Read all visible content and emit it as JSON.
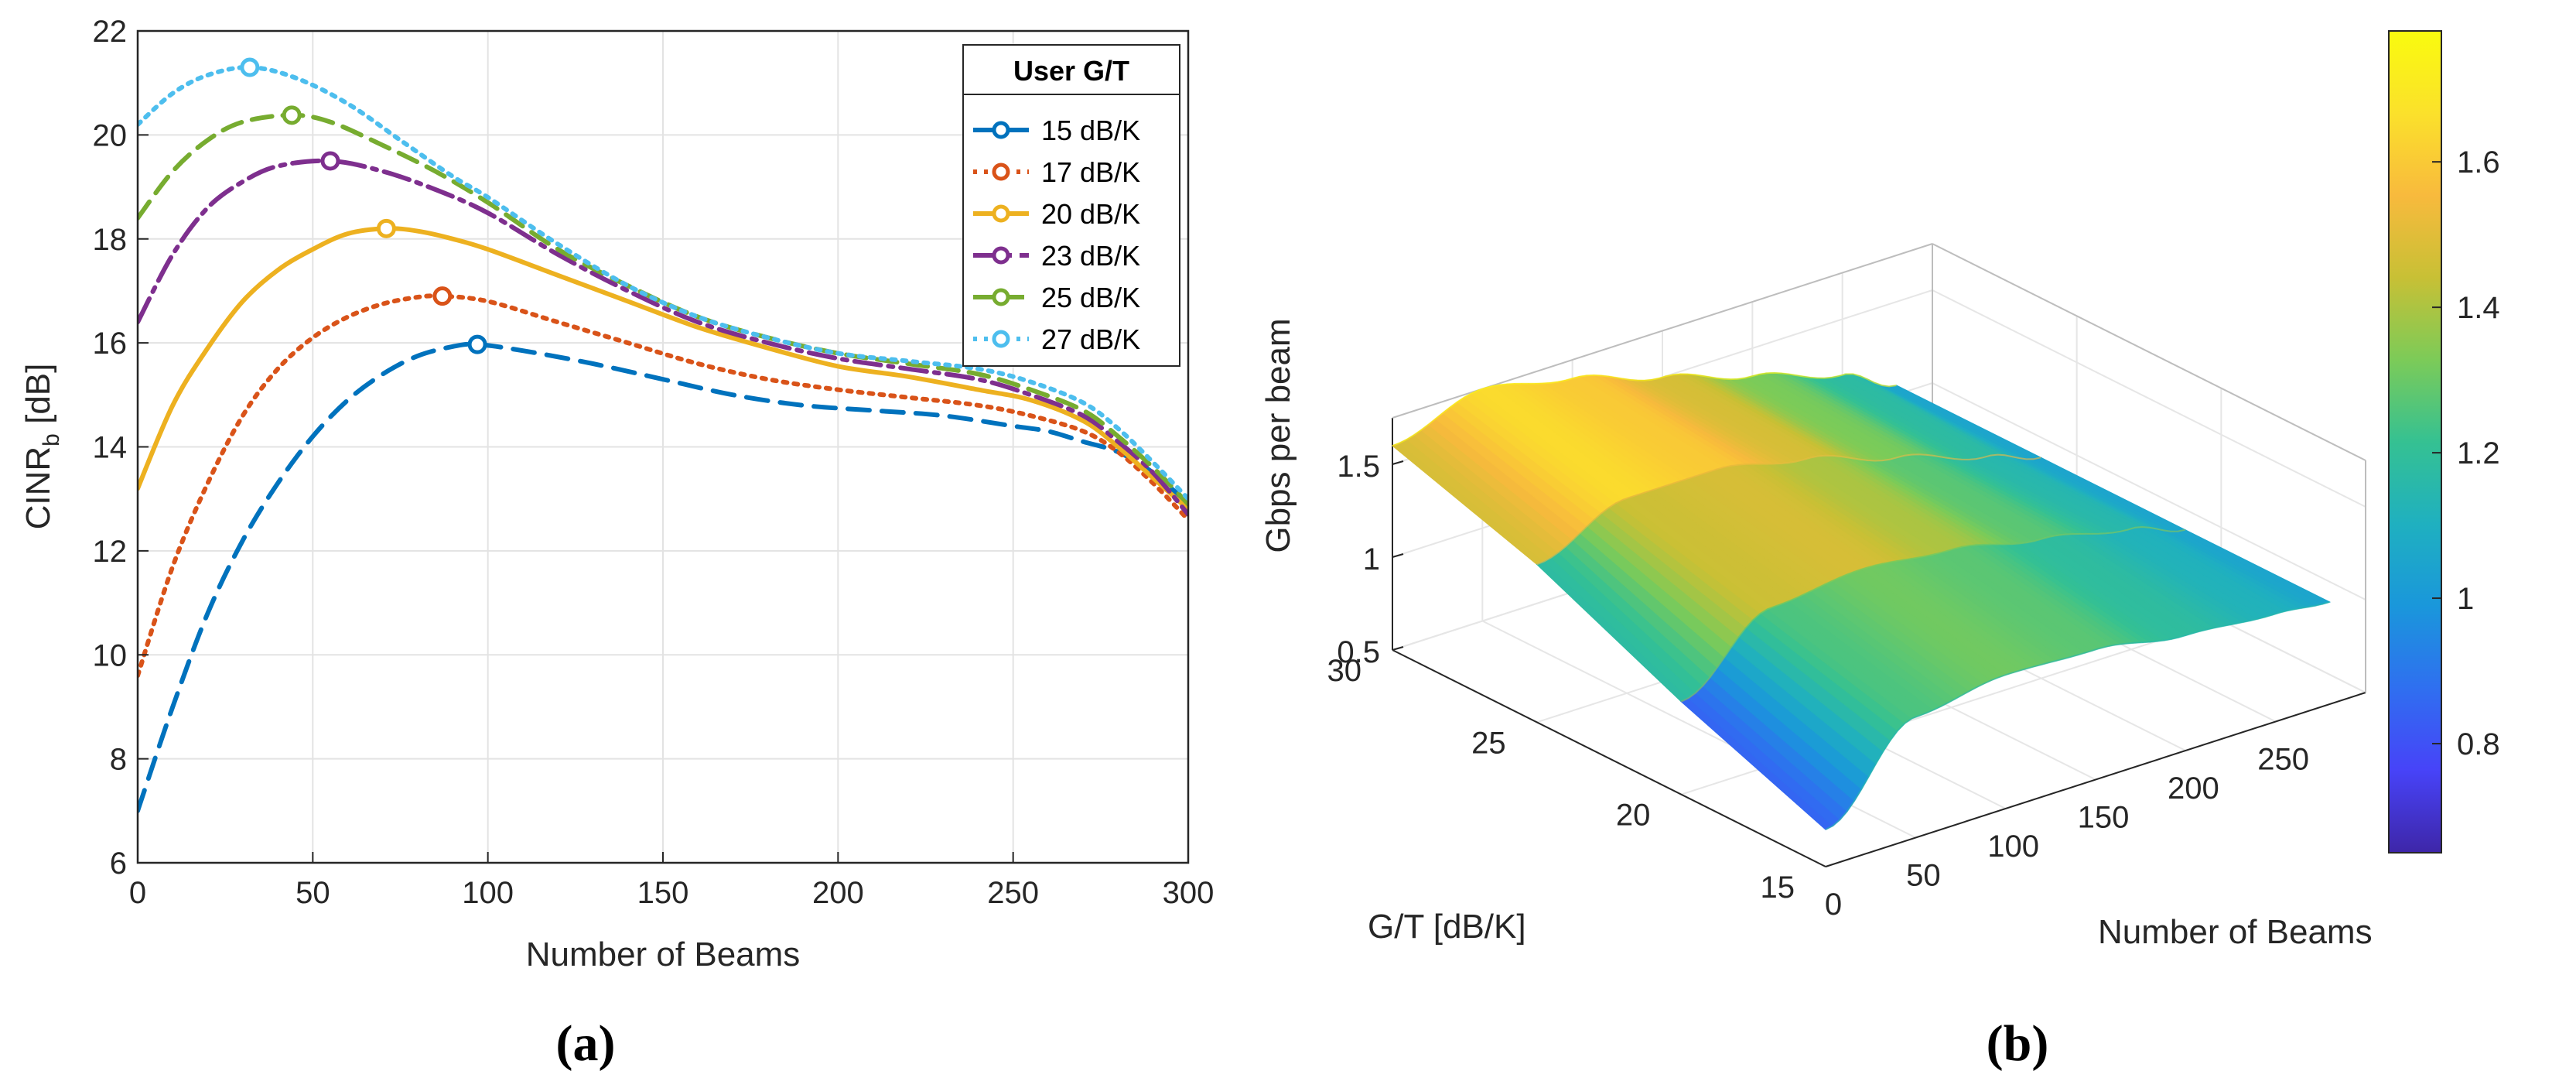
{
  "figure": {
    "panel_a_label": "(a)",
    "panel_b_label": "(b)"
  },
  "chart_data": [
    {
      "type": "line",
      "xlabel": "Number of Beams",
      "ylabel_main": "CINR",
      "ylabel_sub": "b",
      "ylabel_unit": " [dB]",
      "xlim": [
        0,
        300
      ],
      "ylim": [
        6,
        22
      ],
      "xticks": [
        0,
        50,
        100,
        150,
        200,
        250,
        300
      ],
      "yticks": [
        6,
        8,
        10,
        12,
        14,
        16,
        18,
        20,
        22
      ],
      "grid": true,
      "legend": {
        "title": "User G/T",
        "placement": "top-right"
      },
      "series": [
        {
          "name": "15 dB/K",
          "color": "#0072BD",
          "dash": "28,16",
          "peak": [
            97,
            15.97
          ],
          "x": [
            0,
            10,
            20,
            30,
            40,
            50,
            60,
            70,
            80,
            90,
            97,
            110,
            130,
            150,
            170,
            190,
            210,
            230,
            250,
            260,
            270,
            280,
            290,
            300
          ],
          "y": [
            7.0,
            9.0,
            10.8,
            12.2,
            13.3,
            14.2,
            14.9,
            15.4,
            15.75,
            15.93,
            15.97,
            15.85,
            15.6,
            15.3,
            15.0,
            14.8,
            14.7,
            14.6,
            14.4,
            14.3,
            14.1,
            13.9,
            13.5,
            12.9
          ]
        },
        {
          "name": "17 dB/K",
          "color": "#D95319",
          "dash": "5,9",
          "peak": [
            87,
            16.9
          ],
          "x": [
            0,
            10,
            20,
            30,
            40,
            50,
            60,
            70,
            80,
            87,
            100,
            120,
            140,
            160,
            180,
            200,
            220,
            240,
            255,
            270,
            280,
            290,
            300
          ],
          "y": [
            9.6,
            11.7,
            13.3,
            14.6,
            15.5,
            16.1,
            16.5,
            16.75,
            16.88,
            16.9,
            16.8,
            16.4,
            16.0,
            15.6,
            15.3,
            15.1,
            14.95,
            14.8,
            14.6,
            14.3,
            13.9,
            13.3,
            12.6
          ]
        },
        {
          "name": "20 dB/K",
          "color": "#EDB120",
          "dash": "",
          "peak": [
            71,
            18.2
          ],
          "x": [
            0,
            10,
            20,
            30,
            40,
            50,
            60,
            71,
            80,
            90,
            100,
            120,
            140,
            160,
            180,
            200,
            220,
            240,
            255,
            270,
            280,
            290,
            300
          ],
          "y": [
            13.2,
            14.8,
            15.9,
            16.8,
            17.4,
            17.8,
            18.1,
            18.2,
            18.15,
            18.0,
            17.8,
            17.3,
            16.8,
            16.3,
            15.9,
            15.55,
            15.35,
            15.1,
            14.9,
            14.5,
            14.0,
            13.4,
            12.8
          ]
        },
        {
          "name": "23 dB/K",
          "color": "#7E2F8E",
          "dash": "34,10,6,10",
          "peak": [
            55,
            19.5
          ],
          "x": [
            0,
            10,
            20,
            30,
            40,
            55,
            70,
            85,
            100,
            120,
            140,
            160,
            180,
            200,
            220,
            240,
            255,
            270,
            280,
            290,
            300
          ],
          "y": [
            16.4,
            17.7,
            18.6,
            19.1,
            19.4,
            19.5,
            19.3,
            18.95,
            18.5,
            17.7,
            17.0,
            16.4,
            16.0,
            15.7,
            15.5,
            15.3,
            15.0,
            14.6,
            14.1,
            13.5,
            12.7
          ]
        },
        {
          "name": "25 dB/K",
          "color": "#77AC30",
          "dash": "26,14",
          "peak": [
            44,
            20.38
          ],
          "x": [
            0,
            10,
            20,
            30,
            44,
            55,
            70,
            85,
            100,
            120,
            140,
            160,
            180,
            200,
            220,
            240,
            255,
            270,
            280,
            290,
            300
          ],
          "y": [
            18.4,
            19.3,
            19.9,
            20.25,
            20.38,
            20.25,
            19.8,
            19.3,
            18.7,
            17.8,
            17.1,
            16.5,
            16.1,
            15.8,
            15.6,
            15.4,
            15.1,
            14.7,
            14.2,
            13.6,
            12.9
          ]
        },
        {
          "name": "27 dB/K",
          "color": "#4DBEEE",
          "dash": "5,9",
          "peak": [
            32,
            21.3
          ],
          "x": [
            0,
            10,
            20,
            32,
            45,
            60,
            75,
            90,
            100,
            120,
            140,
            160,
            180,
            200,
            220,
            240,
            255,
            270,
            280,
            290,
            300
          ],
          "y": [
            20.2,
            20.8,
            21.15,
            21.3,
            21.1,
            20.6,
            19.9,
            19.2,
            18.8,
            17.9,
            17.1,
            16.5,
            16.1,
            15.8,
            15.65,
            15.5,
            15.25,
            14.85,
            14.35,
            13.7,
            13.0
          ]
        }
      ]
    },
    {
      "type": "surface",
      "xlabel": "Number of Beams",
      "ylabel": "G/T [dB/K]",
      "zlabel": "Gbps per beam",
      "beams_ticks": [
        0,
        50,
        100,
        150,
        200,
        250
      ],
      "gt_ticks": [
        15,
        20,
        25,
        30
      ],
      "z_ticks": [
        0.5,
        1,
        1.5
      ],
      "zlim": [
        0.5,
        1.8
      ],
      "colorbar": {
        "ticks": [
          0.8,
          1,
          1.2,
          1.4,
          1.6
        ],
        "range": [
          0.65,
          1.78
        ],
        "colormap": [
          "#3E26A8",
          "#4743F8",
          "#2F6FF0",
          "#1A97DB",
          "#1FB0C0",
          "#35C192",
          "#7CCB58",
          "#C8C035",
          "#F8BA3D",
          "#FBE12B",
          "#F9FB0E"
        ]
      },
      "surface_lines": [
        {
          "gt": 15,
          "beams": [
            0,
            50,
            100,
            150,
            200,
            250,
            280
          ],
          "gbps": [
            0.7,
            1.15,
            1.22,
            1.2,
            1.12,
            1.08,
            1.05
          ]
        },
        {
          "gt": 20,
          "beams": [
            0,
            50,
            100,
            150,
            200,
            250,
            280
          ],
          "gbps": [
            1.0,
            1.35,
            1.4,
            1.35,
            1.25,
            1.15,
            1.05
          ]
        },
        {
          "gt": 25,
          "beams": [
            0,
            50,
            100,
            150,
            200,
            250,
            280
          ],
          "gbps": [
            1.35,
            1.55,
            1.55,
            1.45,
            1.3,
            1.15,
            1.05
          ]
        },
        {
          "gt": 30,
          "beams": [
            0,
            50,
            100,
            150,
            200,
            250,
            280
          ],
          "gbps": [
            1.6,
            1.75,
            1.65,
            1.5,
            1.35,
            1.2,
            1.05
          ]
        }
      ]
    }
  ]
}
